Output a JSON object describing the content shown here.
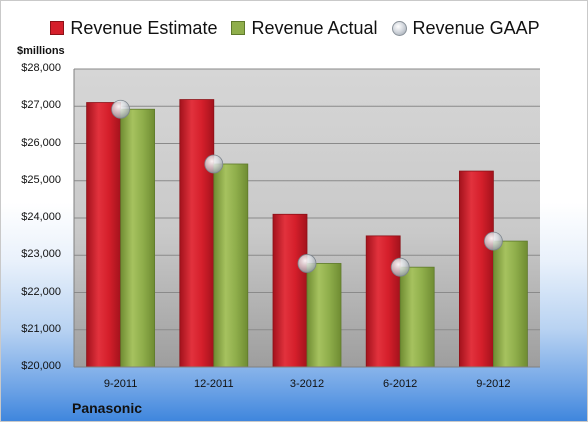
{
  "chart_data": {
    "type": "bar",
    "categories": [
      "9-2011",
      "12-2011",
      "3-2012",
      "6-2012",
      "9-2012"
    ],
    "series": [
      {
        "name": "Revenue Estimate",
        "values": [
          27100,
          27180,
          24100,
          23520,
          25260
        ],
        "color": "#d51f2b"
      },
      {
        "name": "Revenue Actual",
        "values": [
          26920,
          25450,
          22780,
          22680,
          23380
        ],
        "color": "#8fae4b"
      },
      {
        "name": "Revenue GAAP",
        "values": [
          26920,
          25450,
          22780,
          22680,
          23380
        ],
        "marker": "sphere"
      }
    ],
    "ylabel": "$millions",
    "ylim": [
      20000,
      28000
    ],
    "yticks": [
      "$20,000",
      "$21,000",
      "$22,000",
      "$23,000",
      "$24,000",
      "$25,000",
      "$26,000",
      "$27,000",
      "$28,000"
    ],
    "grid": true,
    "legend": "top"
  },
  "company": "Panasonic"
}
